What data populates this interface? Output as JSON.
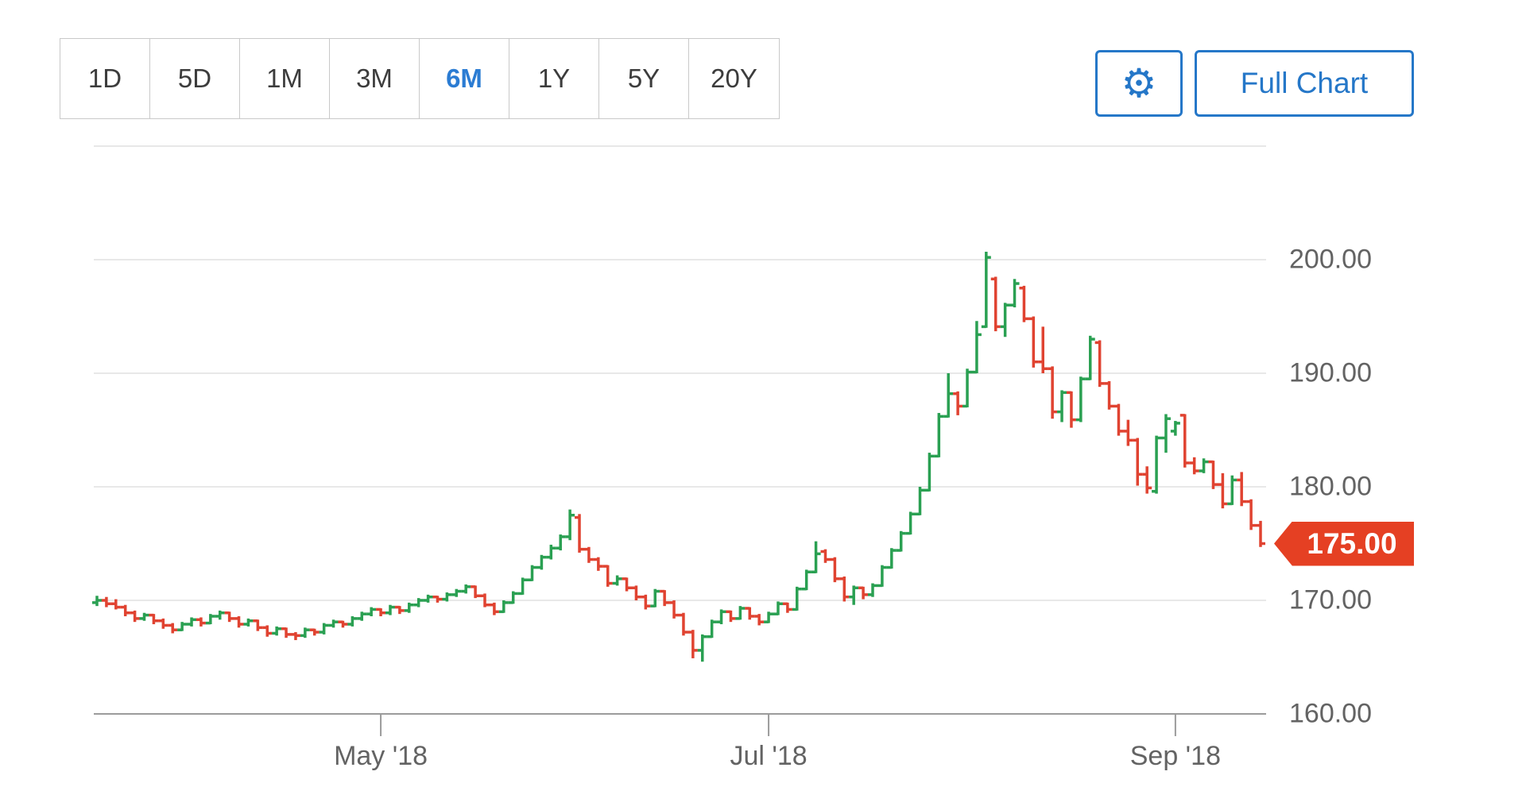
{
  "toolbar": {
    "ranges": [
      {
        "label": "1D",
        "active": false
      },
      {
        "label": "5D",
        "active": false
      },
      {
        "label": "1M",
        "active": false
      },
      {
        "label": "3M",
        "active": false
      },
      {
        "label": "6M",
        "active": true
      },
      {
        "label": "1Y",
        "active": false
      },
      {
        "label": "5Y",
        "active": false
      },
      {
        "label": "20Y",
        "active": false
      }
    ],
    "settings_icon": "gear-icon",
    "settings_glyph": "⚙",
    "full_chart_label": "Full Chart"
  },
  "colors": {
    "up": "#2aa052",
    "down": "#e04331",
    "accent_blue": "#2577c8",
    "active_range_blue": "#2b7cd3",
    "badge_red": "#e54023",
    "gridline": "#e8e8e8",
    "axis_line": "#9b9b9b",
    "axis_text": "#636363"
  },
  "chart_data": {
    "type": "candlestick",
    "style": "ohlc-bar",
    "period": "6M daily bars",
    "bars_format": "[open, high, low, close]",
    "y_axis": {
      "labels": [
        {
          "text": "200.00",
          "value": 200
        },
        {
          "text": "190.00",
          "value": 190
        },
        {
          "text": "180.00",
          "value": 180
        },
        {
          "text": "170.00",
          "value": 170
        },
        {
          "text": "160.00",
          "value": 160
        }
      ],
      "gridlines": [
        210,
        200,
        190,
        180,
        170
      ],
      "range": [
        158,
        212
      ]
    },
    "x_axis": {
      "ticks": [
        {
          "label": "May '18",
          "index": 30
        },
        {
          "label": "Jul '18",
          "index": 71
        },
        {
          "label": "Sep '18",
          "index": 114
        }
      ]
    },
    "last_price": {
      "label": "175.00",
      "value": 175
    },
    "bars": [
      [
        169.8,
        170.4,
        169.5,
        170.0
      ],
      [
        170.0,
        170.3,
        169.4,
        169.7
      ],
      [
        169.7,
        170.1,
        169.2,
        169.4
      ],
      [
        169.4,
        169.6,
        168.6,
        168.9
      ],
      [
        168.9,
        169.1,
        168.1,
        168.4
      ],
      [
        168.4,
        168.9,
        168.2,
        168.7
      ],
      [
        168.7,
        168.8,
        167.9,
        168.2
      ],
      [
        168.2,
        168.4,
        167.5,
        167.8
      ],
      [
        167.8,
        168.0,
        167.1,
        167.4
      ],
      [
        167.4,
        168.1,
        167.3,
        167.9
      ],
      [
        167.9,
        168.5,
        167.7,
        168.3
      ],
      [
        168.3,
        168.5,
        167.7,
        168.0
      ],
      [
        168.0,
        168.8,
        167.9,
        168.6
      ],
      [
        168.6,
        169.1,
        168.3,
        168.9
      ],
      [
        168.9,
        169.0,
        168.1,
        168.4
      ],
      [
        168.4,
        168.6,
        167.6,
        167.9
      ],
      [
        167.9,
        168.4,
        167.7,
        168.2
      ],
      [
        168.2,
        168.3,
        167.3,
        167.6
      ],
      [
        167.6,
        167.8,
        166.8,
        167.1
      ],
      [
        167.1,
        167.7,
        166.9,
        167.5
      ],
      [
        167.5,
        167.6,
        166.7,
        167.0
      ],
      [
        167.0,
        167.2,
        166.5,
        166.9
      ],
      [
        166.9,
        167.6,
        166.7,
        167.4
      ],
      [
        167.4,
        167.5,
        166.9,
        167.2
      ],
      [
        167.2,
        168.0,
        167.0,
        167.8
      ],
      [
        167.8,
        168.3,
        167.6,
        168.1
      ],
      [
        168.1,
        168.2,
        167.6,
        167.9
      ],
      [
        167.9,
        168.6,
        167.7,
        168.4
      ],
      [
        168.4,
        169.0,
        168.2,
        168.8
      ],
      [
        168.8,
        169.4,
        168.6,
        169.2
      ],
      [
        169.2,
        169.3,
        168.6,
        168.9
      ],
      [
        168.9,
        169.6,
        168.7,
        169.4
      ],
      [
        169.4,
        169.5,
        168.8,
        169.1
      ],
      [
        169.1,
        169.8,
        168.9,
        169.6
      ],
      [
        169.6,
        170.2,
        169.4,
        170.0
      ],
      [
        170.0,
        170.5,
        169.8,
        170.3
      ],
      [
        170.3,
        170.4,
        169.8,
        170.1
      ],
      [
        170.1,
        170.7,
        169.9,
        170.5
      ],
      [
        170.5,
        171.0,
        170.3,
        170.8
      ],
      [
        170.8,
        171.4,
        170.6,
        171.2
      ],
      [
        171.2,
        171.3,
        170.2,
        170.4
      ],
      [
        170.4,
        170.6,
        169.4,
        169.6
      ],
      [
        169.6,
        169.8,
        168.7,
        169.0
      ],
      [
        169.0,
        170.0,
        168.9,
        169.8
      ],
      [
        169.8,
        170.8,
        169.7,
        170.6
      ],
      [
        170.6,
        172.0,
        170.5,
        171.8
      ],
      [
        171.8,
        173.1,
        171.7,
        172.9
      ],
      [
        172.9,
        174.0,
        172.7,
        173.8
      ],
      [
        173.8,
        174.9,
        173.6,
        174.6
      ],
      [
        174.6,
        175.8,
        174.4,
        175.6
      ],
      [
        175.6,
        178.0,
        175.3,
        177.5
      ],
      [
        177.3,
        177.6,
        174.2,
        174.5
      ],
      [
        174.5,
        174.7,
        173.3,
        173.6
      ],
      [
        173.6,
        173.8,
        172.6,
        173.0
      ],
      [
        173.0,
        173.1,
        171.2,
        171.5
      ],
      [
        171.5,
        172.2,
        171.3,
        171.9
      ],
      [
        171.9,
        172.0,
        170.8,
        171.1
      ],
      [
        171.1,
        171.3,
        170.0,
        170.3
      ],
      [
        170.3,
        170.5,
        169.2,
        169.5
      ],
      [
        169.5,
        171.0,
        169.4,
        170.8
      ],
      [
        170.8,
        170.9,
        169.5,
        169.8
      ],
      [
        169.8,
        170.0,
        168.4,
        168.7
      ],
      [
        168.7,
        168.9,
        166.9,
        167.2
      ],
      [
        167.2,
        167.4,
        164.9,
        165.6
      ],
      [
        165.6,
        167.0,
        164.6,
        166.8
      ],
      [
        166.8,
        168.3,
        166.7,
        168.1
      ],
      [
        168.1,
        169.2,
        167.9,
        169.0
      ],
      [
        169.0,
        169.1,
        168.1,
        168.4
      ],
      [
        168.4,
        169.5,
        168.3,
        169.3
      ],
      [
        169.3,
        169.4,
        168.3,
        168.6
      ],
      [
        168.6,
        168.8,
        167.8,
        168.1
      ],
      [
        168.1,
        169.0,
        168.0,
        168.8
      ],
      [
        168.8,
        169.9,
        168.7,
        169.7
      ],
      [
        169.7,
        169.8,
        168.9,
        169.2
      ],
      [
        169.2,
        171.2,
        169.1,
        171.0
      ],
      [
        171.0,
        172.7,
        170.9,
        172.5
      ],
      [
        172.5,
        175.2,
        172.4,
        174.1
      ],
      [
        174.3,
        174.5,
        173.3,
        173.6
      ],
      [
        173.6,
        173.8,
        171.6,
        171.9
      ],
      [
        171.9,
        172.1,
        169.9,
        170.3
      ],
      [
        170.3,
        171.3,
        169.6,
        171.1
      ],
      [
        171.1,
        171.2,
        170.1,
        170.5
      ],
      [
        170.5,
        171.5,
        170.3,
        171.3
      ],
      [
        171.3,
        173.1,
        171.2,
        172.9
      ],
      [
        172.9,
        174.6,
        172.8,
        174.4
      ],
      [
        174.4,
        176.1,
        174.3,
        175.9
      ],
      [
        175.9,
        177.8,
        175.8,
        177.6
      ],
      [
        177.6,
        180.0,
        177.5,
        179.7
      ],
      [
        179.7,
        183.0,
        179.6,
        182.7
      ],
      [
        182.7,
        186.5,
        182.6,
        186.2
      ],
      [
        186.2,
        190.0,
        186.1,
        188.2
      ],
      [
        188.2,
        188.4,
        186.3,
        187.1
      ],
      [
        187.1,
        190.4,
        187.0,
        190.1
      ],
      [
        190.1,
        194.6,
        190.0,
        193.4
      ],
      [
        194.1,
        200.7,
        194.0,
        200.2
      ],
      [
        198.3,
        198.5,
        193.7,
        194.1
      ],
      [
        194.1,
        196.2,
        193.2,
        196.0
      ],
      [
        196.0,
        198.3,
        195.8,
        197.9
      ],
      [
        197.5,
        197.7,
        194.5,
        194.8
      ],
      [
        194.8,
        195.0,
        190.5,
        191.0
      ],
      [
        191.0,
        194.1,
        190.0,
        190.4
      ],
      [
        190.4,
        190.6,
        186.0,
        186.6
      ],
      [
        186.6,
        188.5,
        185.7,
        188.3
      ],
      [
        188.3,
        188.4,
        185.2,
        185.9
      ],
      [
        185.9,
        189.7,
        185.7,
        189.5
      ],
      [
        189.5,
        193.3,
        189.4,
        193.0
      ],
      [
        192.7,
        192.9,
        188.8,
        189.1
      ],
      [
        189.1,
        189.3,
        186.8,
        187.1
      ],
      [
        187.1,
        187.3,
        184.5,
        184.9
      ],
      [
        184.9,
        185.9,
        183.6,
        184.1
      ],
      [
        184.1,
        184.3,
        180.1,
        181.1
      ],
      [
        181.1,
        181.8,
        179.4,
        179.9
      ],
      [
        179.6,
        184.5,
        179.4,
        184.3
      ],
      [
        184.3,
        186.4,
        183.0,
        186.0
      ],
      [
        184.9,
        185.8,
        184.5,
        185.6
      ],
      [
        186.3,
        186.4,
        181.7,
        182.1
      ],
      [
        182.1,
        182.6,
        181.1,
        181.4
      ],
      [
        181.4,
        182.5,
        181.2,
        182.2
      ],
      [
        182.2,
        182.3,
        179.8,
        180.2
      ],
      [
        180.2,
        181.2,
        178.1,
        178.5
      ],
      [
        178.5,
        181.0,
        178.4,
        180.6
      ],
      [
        180.6,
        181.3,
        178.3,
        178.7
      ],
      [
        178.7,
        178.9,
        176.2,
        176.6
      ],
      [
        176.6,
        177.0,
        174.7,
        175.0
      ]
    ]
  }
}
